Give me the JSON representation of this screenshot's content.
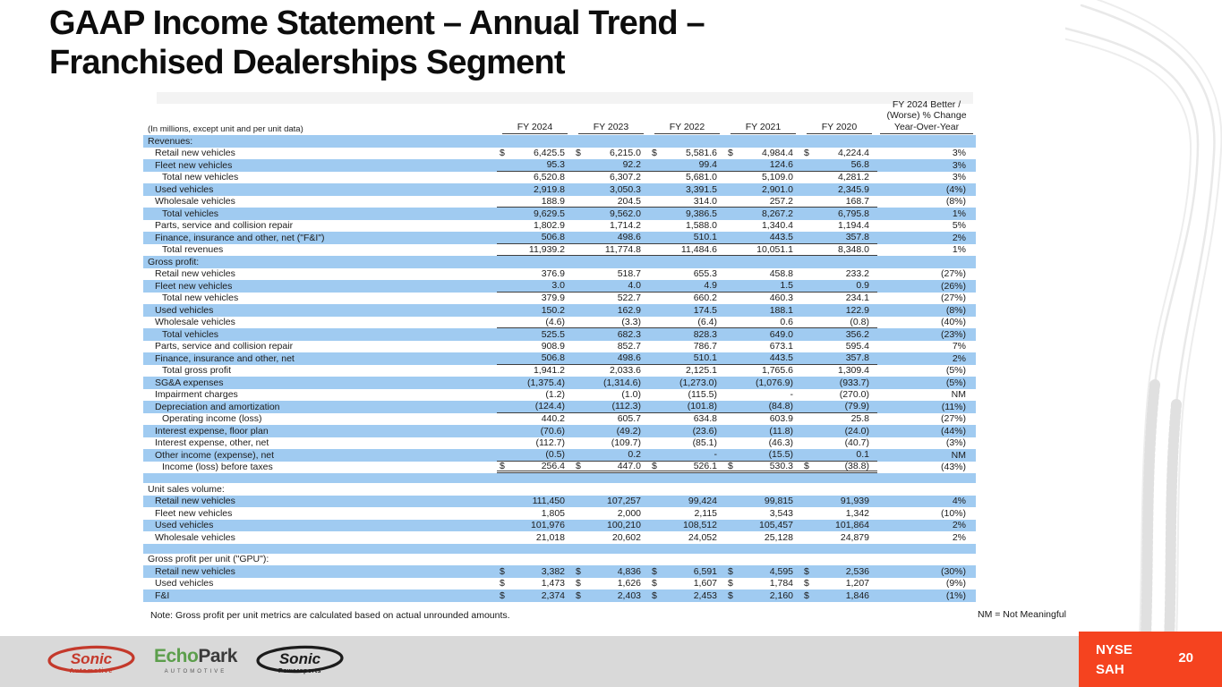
{
  "slide": {
    "title_line1": "GAAP Income Statement – Annual Trend –",
    "title_line2": "Franchised Dealerships Segment",
    "note": "Note: Gross profit per unit metrics are calculated based on actual unrounded amounts.",
    "nm_note": "NM = Not Meaningful",
    "ticker_line1": "NYSE",
    "ticker_line2": "SAH",
    "page_number": "20"
  },
  "colors": {
    "stripe_blue": "#A0CBF1",
    "accent_red": "#F5431F",
    "footer_gray": "#D9D9D9",
    "logo_red": "#C4392B",
    "logo_green": "#5C9E4C"
  },
  "logos": {
    "sonic_automotive": {
      "name": "Sonic",
      "sub": "Automotive"
    },
    "echopark": {
      "part1": "Echo",
      "part2": "Park",
      "sub": "AUTOMOTIVE"
    },
    "sonic_powersports": {
      "name": "Sonic",
      "sub": "Powersports"
    }
  },
  "table": {
    "units_note": "(In millions, except unit and per unit data)",
    "col_headers": [
      "FY 2024",
      "FY 2023",
      "FY 2022",
      "FY 2021",
      "FY 2020"
    ],
    "pct_header_lines": [
      "FY 2024 Better /",
      "(Worse) % Change",
      "Year-Over-Year"
    ],
    "rows": [
      {
        "label": "Revenues:",
        "indent": 0,
        "shade": true,
        "section": true
      },
      {
        "label": "Retail new vehicles",
        "indent": 1,
        "shade": false,
        "dollars": true,
        "cells": [
          "6,425.5",
          "6,215.0",
          "5,581.6",
          "4,984.4",
          "4,224.4",
          "3%"
        ]
      },
      {
        "label": "Fleet new vehicles",
        "indent": 1,
        "shade": true,
        "underline": true,
        "cells": [
          "95.3",
          "92.2",
          "99.4",
          "124.6",
          "56.8",
          "3%"
        ]
      },
      {
        "label": "Total new vehicles",
        "indent": 2,
        "shade": false,
        "cells": [
          "6,520.8",
          "6,307.2",
          "5,681.0",
          "5,109.0",
          "4,281.2",
          "3%"
        ]
      },
      {
        "label": "Used vehicles",
        "indent": 1,
        "shade": true,
        "cells": [
          "2,919.8",
          "3,050.3",
          "3,391.5",
          "2,901.0",
          "2,345.9",
          "(4%)"
        ]
      },
      {
        "label": "Wholesale vehicles",
        "indent": 1,
        "shade": false,
        "underline": true,
        "cells": [
          "188.9",
          "204.5",
          "314.0",
          "257.2",
          "168.7",
          "(8%)"
        ]
      },
      {
        "label": "Total vehicles",
        "indent": 2,
        "shade": true,
        "cells": [
          "9,629.5",
          "9,562.0",
          "9,386.5",
          "8,267.2",
          "6,795.8",
          "1%"
        ]
      },
      {
        "label": "Parts, service and collision repair",
        "indent": 1,
        "shade": false,
        "cells": [
          "1,802.9",
          "1,714.2",
          "1,588.0",
          "1,340.4",
          "1,194.4",
          "5%"
        ]
      },
      {
        "label": "Finance, insurance and other, net (\"F&I\")",
        "indent": 1,
        "shade": true,
        "underline": true,
        "cells": [
          "506.8",
          "498.6",
          "510.1",
          "443.5",
          "357.8",
          "2%"
        ]
      },
      {
        "label": "Total revenues",
        "indent": 2,
        "shade": false,
        "underline": true,
        "cells": [
          "11,939.2",
          "11,774.8",
          "11,484.6",
          "10,051.1",
          "8,348.0",
          "1%"
        ]
      },
      {
        "label": "Gross profit:",
        "indent": 0,
        "shade": true,
        "section": true
      },
      {
        "label": "Retail new vehicles",
        "indent": 1,
        "shade": false,
        "cells": [
          "376.9",
          "518.7",
          "655.3",
          "458.8",
          "233.2",
          "(27%)"
        ]
      },
      {
        "label": "Fleet new vehicles",
        "indent": 1,
        "shade": true,
        "underline": true,
        "cells": [
          "3.0",
          "4.0",
          "4.9",
          "1.5",
          "0.9",
          "(26%)"
        ]
      },
      {
        "label": "Total new vehicles",
        "indent": 2,
        "shade": false,
        "cells": [
          "379.9",
          "522.7",
          "660.2",
          "460.3",
          "234.1",
          "(27%)"
        ]
      },
      {
        "label": "Used vehicles",
        "indent": 1,
        "shade": true,
        "cells": [
          "150.2",
          "162.9",
          "174.5",
          "188.1",
          "122.9",
          "(8%)"
        ]
      },
      {
        "label": "Wholesale vehicles",
        "indent": 1,
        "shade": false,
        "underline": true,
        "cells": [
          "(4.6)",
          "(3.3)",
          "(6.4)",
          "0.6",
          "(0.8)",
          "(40%)"
        ]
      },
      {
        "label": "Total vehicles",
        "indent": 2,
        "shade": true,
        "cells": [
          "525.5",
          "682.3",
          "828.3",
          "649.0",
          "356.2",
          "(23%)"
        ]
      },
      {
        "label": "Parts, service and collision repair",
        "indent": 1,
        "shade": false,
        "cells": [
          "908.9",
          "852.7",
          "786.7",
          "673.1",
          "595.4",
          "7%"
        ]
      },
      {
        "label": "Finance, insurance and other, net",
        "indent": 1,
        "shade": true,
        "underline": true,
        "cells": [
          "506.8",
          "498.6",
          "510.1",
          "443.5",
          "357.8",
          "2%"
        ]
      },
      {
        "label": "Total gross profit",
        "indent": 2,
        "shade": false,
        "cells": [
          "1,941.2",
          "2,033.6",
          "2,125.1",
          "1,765.6",
          "1,309.4",
          "(5%)"
        ]
      },
      {
        "label": "SG&A expenses",
        "indent": 1,
        "shade": true,
        "cells": [
          "(1,375.4)",
          "(1,314.6)",
          "(1,273.0)",
          "(1,076.9)",
          "(933.7)",
          "(5%)"
        ]
      },
      {
        "label": "Impairment charges",
        "indent": 1,
        "shade": false,
        "cells": [
          "(1.2)",
          "(1.0)",
          "(115.5)",
          "-",
          "(270.0)",
          "NM"
        ]
      },
      {
        "label": "Depreciation and amortization",
        "indent": 1,
        "shade": true,
        "underline": true,
        "cells": [
          "(124.4)",
          "(112.3)",
          "(101.8)",
          "(84.8)",
          "(79.9)",
          "(11%)"
        ]
      },
      {
        "label": "Operating income (loss)",
        "indent": 2,
        "shade": false,
        "cells": [
          "440.2",
          "605.7",
          "634.8",
          "603.9",
          "25.8",
          "(27%)"
        ]
      },
      {
        "label": "Interest expense, floor plan",
        "indent": 1,
        "shade": true,
        "cells": [
          "(70.6)",
          "(49.2)",
          "(23.6)",
          "(11.8)",
          "(24.0)",
          "(44%)"
        ]
      },
      {
        "label": "Interest expense, other, net",
        "indent": 1,
        "shade": false,
        "cells": [
          "(112.7)",
          "(109.7)",
          "(85.1)",
          "(46.3)",
          "(40.7)",
          "(3%)"
        ]
      },
      {
        "label": "Other income (expense), net",
        "indent": 1,
        "shade": true,
        "underline": true,
        "cells": [
          "(0.5)",
          "0.2",
          "-",
          "(15.5)",
          "0.1",
          "NM"
        ]
      },
      {
        "label": "Income (loss) before taxes",
        "indent": 2,
        "shade": false,
        "dollars": true,
        "dbl": true,
        "cells": [
          "256.4",
          "447.0",
          "526.1",
          "530.3",
          "(38.8)",
          "(43%)"
        ]
      },
      {
        "spacer": true,
        "shade": true
      },
      {
        "label": "Unit sales volume:",
        "indent": 0,
        "shade": false,
        "section": true
      },
      {
        "label": "Retail new vehicles",
        "indent": 1,
        "shade": true,
        "cells": [
          "111,450",
          "107,257",
          "99,424",
          "99,815",
          "91,939",
          "4%"
        ]
      },
      {
        "label": "Fleet new vehicles",
        "indent": 1,
        "shade": false,
        "cells": [
          "1,805",
          "2,000",
          "2,115",
          "3,543",
          "1,342",
          "(10%)"
        ]
      },
      {
        "label": "Used vehicles",
        "indent": 1,
        "shade": true,
        "cells": [
          "101,976",
          "100,210",
          "108,512",
          "105,457",
          "101,864",
          "2%"
        ]
      },
      {
        "label": "Wholesale vehicles",
        "indent": 1,
        "shade": false,
        "cells": [
          "21,018",
          "20,602",
          "24,052",
          "25,128",
          "24,879",
          "2%"
        ]
      },
      {
        "spacer": true,
        "shade": true
      },
      {
        "label": "Gross profit per unit (\"GPU\"):",
        "indent": 0,
        "shade": false,
        "section": true
      },
      {
        "label": "Retail new vehicles",
        "indent": 1,
        "shade": true,
        "dollars": true,
        "cells": [
          "3,382",
          "4,836",
          "6,591",
          "4,595",
          "2,536",
          "(30%)"
        ]
      },
      {
        "label": "Used vehicles",
        "indent": 1,
        "shade": false,
        "dollars": true,
        "cells": [
          "1,473",
          "1,626",
          "1,607",
          "1,784",
          "1,207",
          "(9%)"
        ]
      },
      {
        "label": "F&I",
        "indent": 1,
        "shade": true,
        "dollars": true,
        "cells": [
          "2,374",
          "2,403",
          "2,453",
          "2,160",
          "1,846",
          "(1%)"
        ]
      }
    ]
  }
}
